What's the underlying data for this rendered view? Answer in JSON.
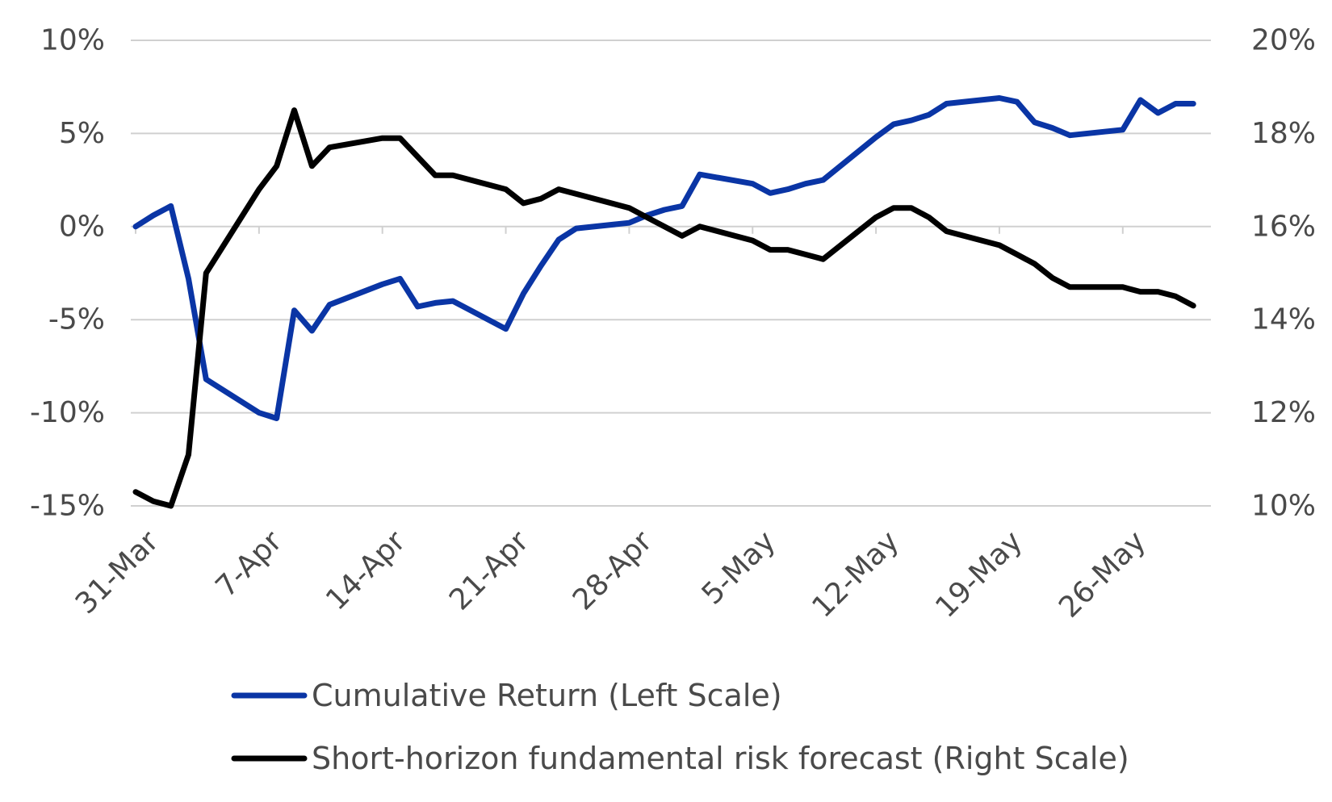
{
  "chart_data": {
    "type": "line",
    "title": "",
    "x_tick_labels": [
      "31-Mar",
      "7-Apr",
      "14-Apr",
      "21-Apr",
      "28-Apr",
      "5-May",
      "12-May",
      "19-May",
      "26-May"
    ],
    "x_tick_days": [
      0,
      7,
      14,
      21,
      28,
      35,
      42,
      49,
      56
    ],
    "x_range_days": [
      0,
      61
    ],
    "left_axis": {
      "ticks": [
        -15,
        -10,
        -5,
        0,
        5,
        10
      ],
      "tick_labels": [
        "-15%",
        "-10%",
        "-5%",
        "0%",
        "5%",
        "10%"
      ],
      "range": [
        -15,
        10
      ]
    },
    "right_axis": {
      "ticks": [
        10,
        12,
        14,
        16,
        18,
        20
      ],
      "tick_labels": [
        "10%",
        "12%",
        "14%",
        "16%",
        "18%",
        "20%"
      ],
      "range": [
        10,
        20
      ]
    },
    "grid": "horizontal",
    "legend_position": "bottom",
    "series": [
      {
        "name": "Cumulative Return (Left Scale)",
        "axis": "left",
        "color": "#0a35a5",
        "x": [
          0,
          1,
          2,
          3,
          4,
          7,
          8,
          9,
          10,
          11,
          14,
          15,
          16,
          17,
          18,
          21,
          22,
          23,
          24,
          25,
          28,
          29,
          30,
          31,
          32,
          35,
          36,
          37,
          38,
          39,
          42,
          43,
          44,
          45,
          46,
          49,
          50,
          51,
          52,
          53,
          56,
          57,
          58,
          59,
          60
        ],
        "y": [
          0.0,
          0.6,
          1.1,
          -2.8,
          -8.2,
          -10.0,
          -10.3,
          -4.5,
          -5.6,
          -4.2,
          -3.1,
          -2.8,
          -4.3,
          -4.1,
          -4.0,
          -5.5,
          -3.6,
          -2.1,
          -0.7,
          -0.1,
          0.2,
          0.6,
          0.9,
          1.1,
          2.8,
          2.3,
          1.8,
          2.0,
          2.3,
          2.5,
          4.8,
          5.5,
          5.7,
          6.0,
          6.6,
          6.9,
          6.7,
          5.6,
          5.3,
          4.9,
          5.2,
          6.8,
          6.1,
          6.6,
          6.6
        ]
      },
      {
        "name": "Short-horizon fundamental risk forecast (Right Scale)",
        "axis": "right",
        "color": "#000000",
        "x": [
          0,
          1,
          2,
          3,
          4,
          7,
          8,
          9,
          10,
          11,
          14,
          15,
          16,
          17,
          18,
          21,
          22,
          23,
          24,
          25,
          28,
          29,
          30,
          31,
          32,
          35,
          36,
          37,
          38,
          39,
          42,
          43,
          44,
          45,
          46,
          49,
          50,
          51,
          52,
          53,
          56,
          57,
          58,
          59,
          60
        ],
        "y": [
          10.3,
          10.1,
          10.0,
          11.1,
          15.0,
          16.8,
          17.3,
          18.5,
          17.3,
          17.7,
          17.9,
          17.9,
          17.5,
          17.1,
          17.1,
          16.8,
          16.5,
          16.6,
          16.8,
          16.7,
          16.4,
          16.2,
          16.0,
          15.8,
          16.0,
          15.7,
          15.5,
          15.5,
          15.4,
          15.3,
          16.2,
          16.4,
          16.4,
          16.2,
          15.9,
          15.6,
          15.4,
          15.2,
          14.9,
          14.7,
          14.7,
          14.6,
          14.6,
          14.5,
          14.3
        ]
      }
    ]
  }
}
